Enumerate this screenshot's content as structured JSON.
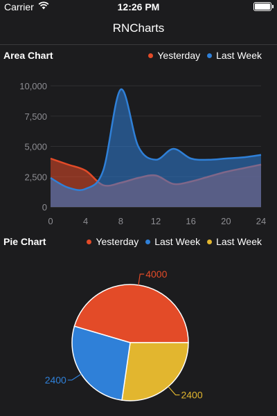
{
  "status_bar": {
    "carrier": "Carrier",
    "time": "12:26 PM"
  },
  "nav": {
    "title": "RNCharts"
  },
  "colors": {
    "yesterday": "#e34b28",
    "last_week": "#2f80d8",
    "third": "#e2b62f",
    "axis_text": "#8e8e93"
  },
  "area_chart": {
    "title": "Area Chart",
    "legend": [
      {
        "name": "Yesterday",
        "color": "#e34b28"
      },
      {
        "name": "Last Week",
        "color": "#2f80d8"
      }
    ]
  },
  "pie_chart": {
    "title": "Pie Chart",
    "legend": [
      {
        "name": "Yesterday",
        "color": "#e34b28"
      },
      {
        "name": "Last Week",
        "color": "#2f80d8"
      },
      {
        "name": "Last Week",
        "color": "#e2b62f"
      }
    ]
  },
  "chart_data": [
    {
      "type": "area",
      "title": "Area Chart",
      "x": [
        0,
        2,
        4,
        6,
        8,
        10,
        12,
        14,
        16,
        18,
        20,
        22,
        24
      ],
      "series": [
        {
          "name": "Yesterday",
          "values": [
            4000,
            3500,
            3000,
            1800,
            2000,
            2400,
            2600,
            1900,
            2100,
            2500,
            2900,
            3200,
            3500
          ]
        },
        {
          "name": "Last Week",
          "values": [
            2400,
            1600,
            1500,
            3000,
            9700,
            5000,
            3900,
            4800,
            4000,
            3900,
            4000,
            4100,
            4300
          ]
        }
      ],
      "xlim": [
        0,
        24
      ],
      "ylim": [
        0,
        10000
      ],
      "xticks": [
        "0",
        "4",
        "8",
        "12",
        "16",
        "20",
        "24"
      ],
      "yticks": [
        "0",
        "2,500",
        "5,000",
        "7,500",
        "10,000"
      ],
      "grid": true,
      "legend_position": "top-right"
    },
    {
      "type": "pie",
      "title": "Pie Chart",
      "slices": [
        {
          "name": "Yesterday",
          "value": 4000,
          "label": "4000",
          "color": "#e34b28"
        },
        {
          "name": "Last Week",
          "value": 2400,
          "label": "2400",
          "color": "#e2b62f"
        },
        {
          "name": "Last Week",
          "value": 2400,
          "label": "2400",
          "color": "#2f80d8"
        }
      ],
      "legend_position": "top-right"
    }
  ]
}
